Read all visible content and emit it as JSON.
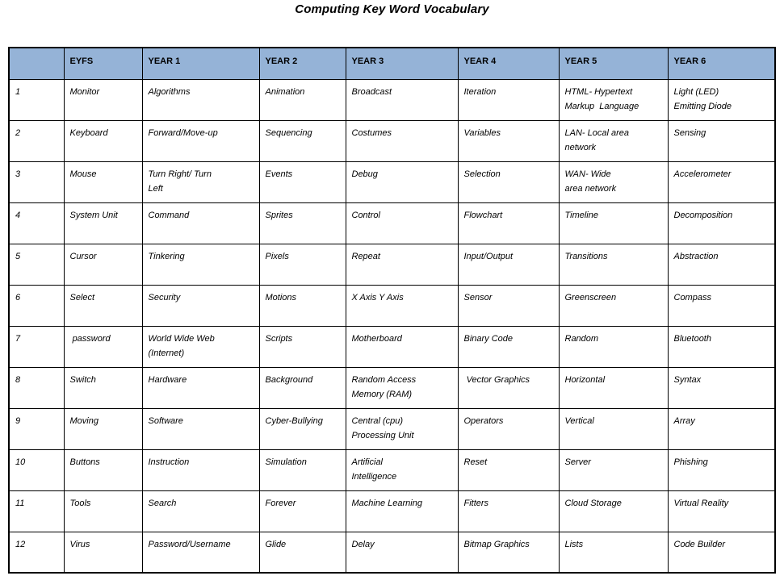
{
  "title": "Computing Key Word Vocabulary",
  "colors": {
    "header_bg": "#95B3D7",
    "border": "#000000",
    "page_bg": "#FFFFFF",
    "text": "#000000"
  },
  "table": {
    "columns": [
      "",
      "EYFS",
      "YEAR 1",
      "YEAR 2",
      "YEAR 3",
      "YEAR 4",
      "YEAR 5",
      "YEAR 6"
    ],
    "rows": [
      {
        "num": "1",
        "cells": [
          "Monitor",
          "Algorithms",
          "Animation",
          "Broadcast",
          "Iteration",
          "HTML- Hypertext\nMarkup  Language",
          "Light (LED)\nEmitting Diode"
        ]
      },
      {
        "num": "2",
        "cells": [
          "Keyboard",
          "Forward/Move-up",
          "Sequencing",
          "Costumes",
          "Variables",
          "LAN- Local area\nnetwork",
          "Sensing"
        ]
      },
      {
        "num": "3",
        "cells": [
          "Mouse",
          "Turn Right/ Turn\nLeft",
          "Events",
          "Debug",
          "Selection",
          "WAN- Wide\narea network",
          "Accelerometer"
        ]
      },
      {
        "num": "4",
        "cells": [
          "System Unit",
          "Command",
          "Sprites",
          "Control",
          "Flowchart",
          "Timeline",
          "Decomposition"
        ]
      },
      {
        "num": "5",
        "cells": [
          "Cursor",
          "Tinkering",
          "Pixels",
          "Repeat",
          "Input/Output",
          "Transitions",
          "Abstraction"
        ]
      },
      {
        "num": "6",
        "cells": [
          "Select",
          "Security",
          "Motions",
          "X Axis Y Axis",
          "Sensor",
          "Greenscreen",
          "Compass"
        ]
      },
      {
        "num": "7",
        "cells": [
          " password",
          "World Wide Web\n(Internet)",
          "Scripts",
          "Motherboard",
          "Binary Code",
          "Random",
          "Bluetooth"
        ]
      },
      {
        "num": "8",
        "cells": [
          "Switch",
          "Hardware",
          "Background",
          "Random Access\nMemory (RAM)",
          " Vector Graphics",
          "Horizontal",
          "Syntax"
        ]
      },
      {
        "num": "9",
        "cells": [
          "Moving",
          "Software",
          "Cyber-Bullying",
          "Central (cpu)\nProcessing Unit",
          "Operators",
          "Vertical",
          "Array"
        ]
      },
      {
        "num": "10",
        "cells": [
          "Buttons",
          "Instruction",
          "Simulation",
          "Artificial\nIntelligence",
          "Reset",
          "Server",
          "Phishing"
        ]
      },
      {
        "num": "11",
        "cells": [
          "Tools",
          "Search",
          "Forever",
          "Machine Learning",
          "Fitters",
          "Cloud Storage",
          "Virtual Reality"
        ]
      },
      {
        "num": "12",
        "cells": [
          "Virus",
          "Password/Username",
          "Glide",
          "Delay",
          "Bitmap Graphics",
          "Lists",
          "Code Builder"
        ]
      }
    ]
  }
}
